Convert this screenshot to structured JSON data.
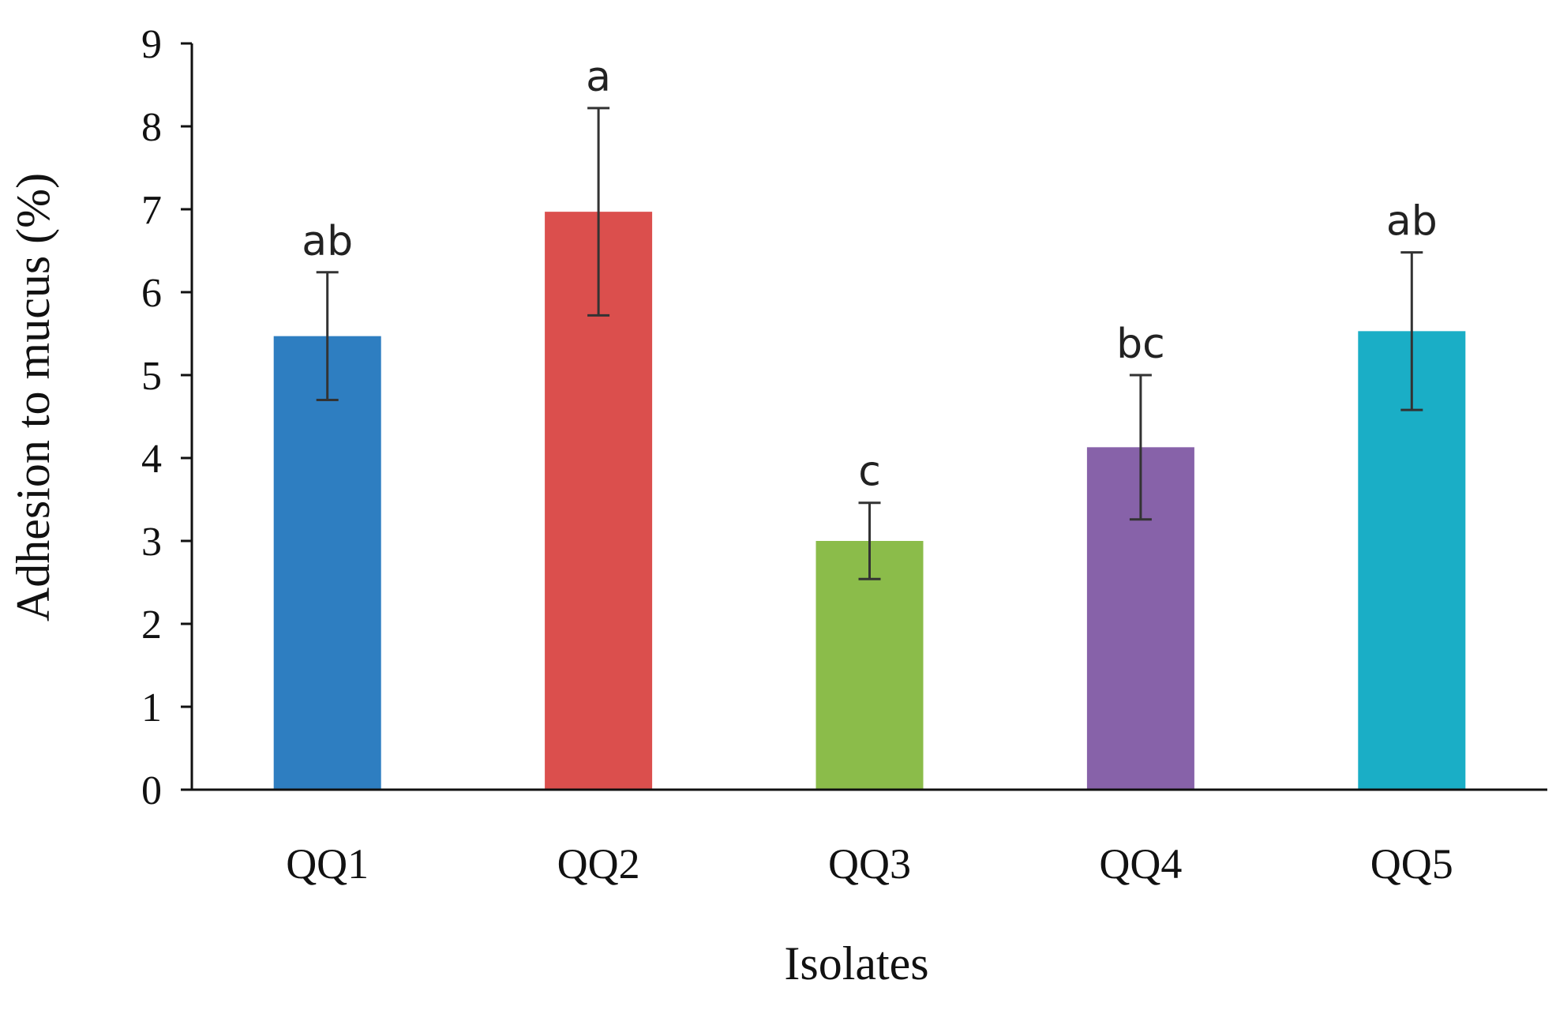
{
  "chart_data": {
    "type": "bar",
    "title": "",
    "xlabel": "Isolates",
    "ylabel": "Adhesion to mucus (%)",
    "ylim": [
      0,
      9
    ],
    "yticks": [
      0,
      1,
      2,
      3,
      4,
      5,
      6,
      7,
      8,
      9
    ],
    "grid": false,
    "categories": [
      "QQ1",
      "QQ2",
      "QQ3",
      "QQ4",
      "QQ5"
    ],
    "values": [
      5.47,
      6.97,
      3.0,
      4.13,
      5.53
    ],
    "errors": [
      0.77,
      1.25,
      0.46,
      0.87,
      0.95
    ],
    "significance_labels": [
      "ab",
      "a",
      "c",
      "bc",
      "ab"
    ],
    "colors": [
      "#2E7EC1",
      "#DB4F4D",
      "#8BBC4A",
      "#8762A9",
      "#1AAEC6"
    ]
  }
}
